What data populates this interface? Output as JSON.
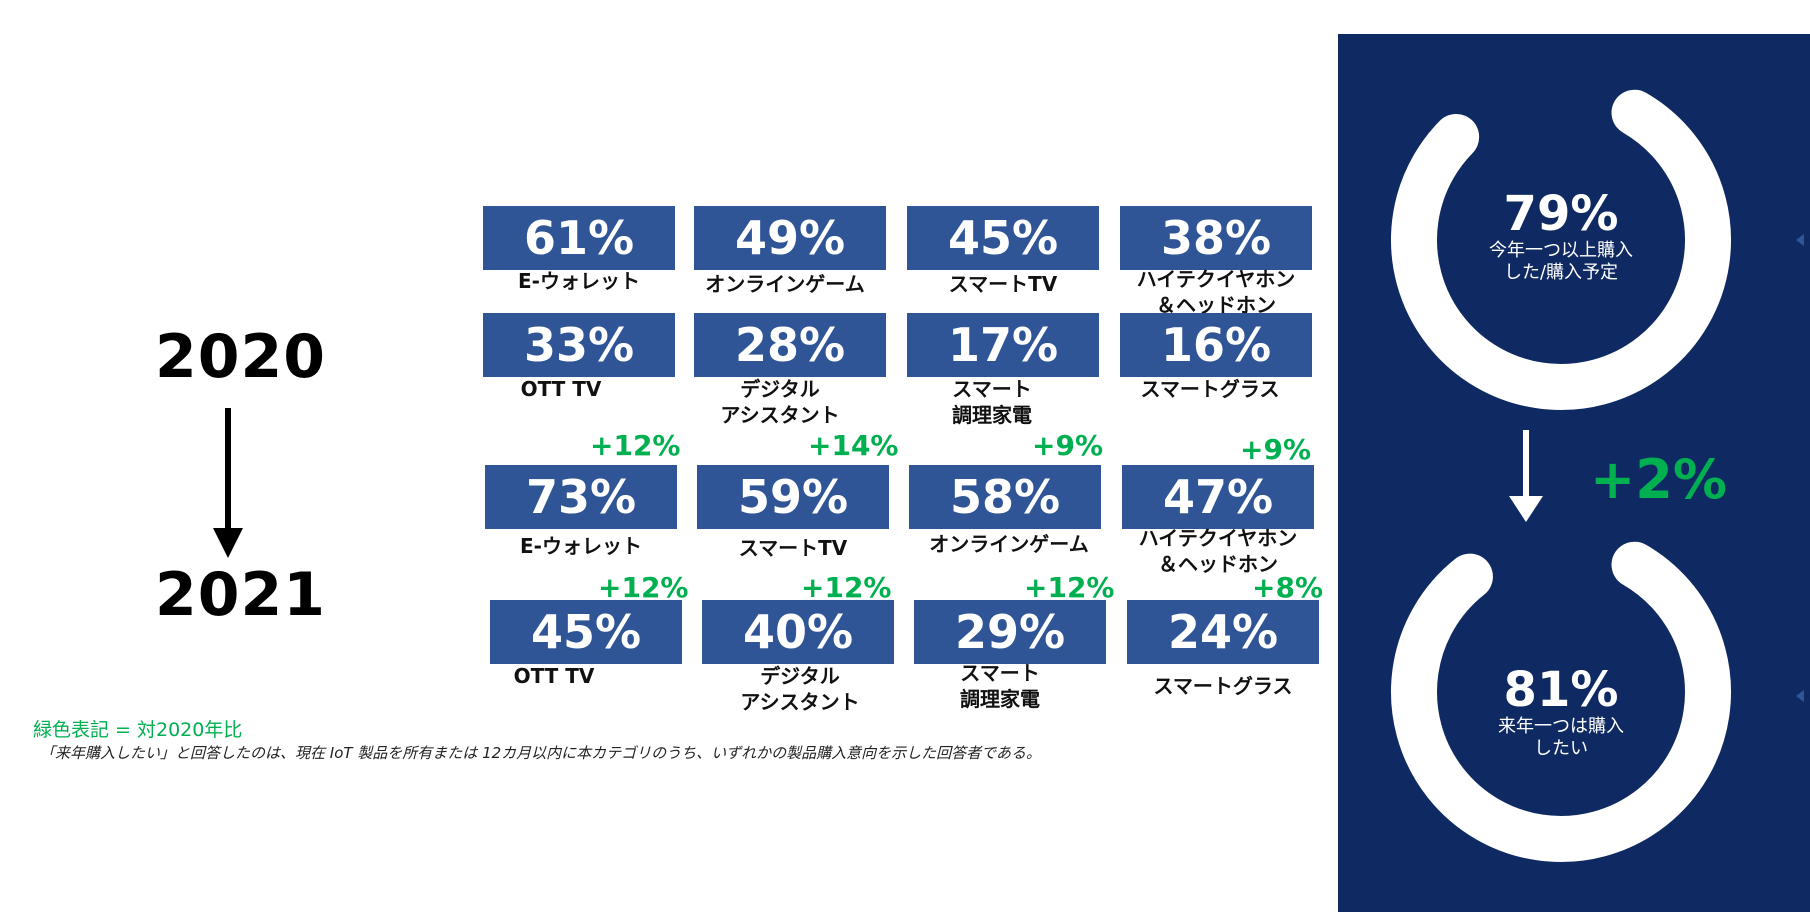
{
  "years": {
    "from": "2020",
    "to": "2021"
  },
  "chart_data": {
    "type": "table",
    "rows_2020": [
      {
        "value": "61%",
        "label": "E-ウォレット"
      },
      {
        "value": "49%",
        "label": "オンラインゲーム"
      },
      {
        "value": "45%",
        "label": "スマートTV"
      },
      {
        "value": "38%",
        "label": "ハイテクイヤホン\n＆ヘッドホン"
      },
      {
        "value": "33%",
        "label": "OTT TV"
      },
      {
        "value": "28%",
        "label": "デジタル\nアシスタント"
      },
      {
        "value": "17%",
        "label": "スマート\n調理家電"
      },
      {
        "value": "16%",
        "label": "スマートグラス"
      }
    ],
    "rows_2021": [
      {
        "value": "73%",
        "label": "E-ウォレット",
        "delta": "+12%"
      },
      {
        "value": "59%",
        "label": "スマートTV",
        "delta": "+14%"
      },
      {
        "value": "58%",
        "label": "オンラインゲーム",
        "delta": "+9%"
      },
      {
        "value": "47%",
        "label": "ハイテクイヤホン\n＆ヘッドホン",
        "delta": "+9%"
      },
      {
        "value": "45%",
        "label": "OTT TV",
        "delta": "+12%"
      },
      {
        "value": "40%",
        "label": "デジタル\nアシスタント",
        "delta": "+12%"
      },
      {
        "value": "29%",
        "label": "スマート\n調理家電",
        "delta": "+12%"
      },
      {
        "value": "24%",
        "label": "スマートグラス",
        "delta": "+8%"
      }
    ]
  },
  "legend_note": "緑色表記 = 対2020年比",
  "footnote": "「来年購入したい」と回答したのは、現在 IoT 製品を所有または 12カ月以内に本カテゴリのうち、いずれかの製品購入意向を示した回答者である。",
  "panel": {
    "top": {
      "value": "79%",
      "fraction": 0.79,
      "caption": "今年一つ以上購入\nした/購入予定"
    },
    "bottom": {
      "value": "81%",
      "fraction": 0.81,
      "caption": "来年一つは購入\nしたい"
    },
    "delta": "+2%"
  },
  "colors": {
    "tile": "#2f5597",
    "panel": "#0f2a63",
    "delta": "#00b050"
  }
}
